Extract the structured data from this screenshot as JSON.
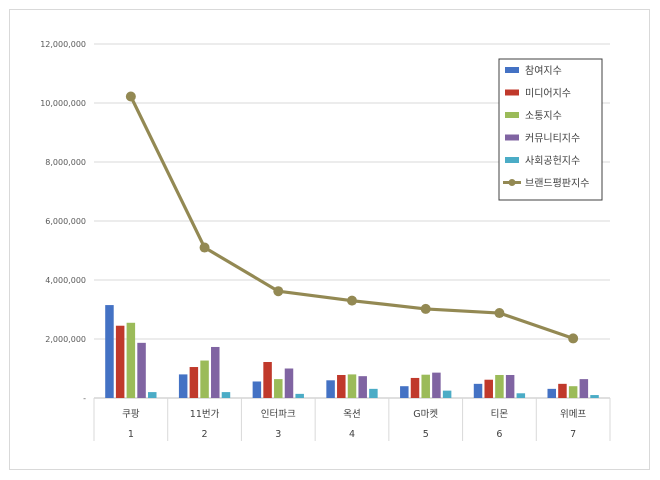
{
  "chart_data": {
    "type": "bar",
    "categories": [
      "쿠팡",
      "11번가",
      "인터파크",
      "옥션",
      "G마켓",
      "티몬",
      "위메프"
    ],
    "ranks": [
      "1",
      "2",
      "3",
      "4",
      "5",
      "6",
      "7"
    ],
    "ylim": [
      0,
      12000000
    ],
    "yticks": [
      0,
      2000000,
      4000000,
      6000000,
      8000000,
      10000000,
      12000000
    ],
    "ytick_labels": [
      "-",
      "2,000,000",
      "4,000,000",
      "6,000,000",
      "8,000,000",
      "10,000,000",
      "12,000,000"
    ],
    "grid": true,
    "legend_position": "top-right",
    "series": [
      {
        "name": "참여지수",
        "type": "bar",
        "color": "#4472c4",
        "values": [
          3150000,
          800000,
          560000,
          600000,
          400000,
          480000,
          310000
        ]
      },
      {
        "name": "미디어지수",
        "type": "bar",
        "color": "#c0392b",
        "values": [
          2450000,
          1050000,
          1220000,
          780000,
          680000,
          620000,
          480000
        ]
      },
      {
        "name": "소통지수",
        "type": "bar",
        "color": "#9bbb59",
        "values": [
          2550000,
          1270000,
          640000,
          800000,
          790000,
          780000,
          400000
        ]
      },
      {
        "name": "커뮤니티지수",
        "type": "bar",
        "color": "#8064a2",
        "values": [
          1870000,
          1730000,
          1000000,
          740000,
          860000,
          780000,
          640000
        ]
      },
      {
        "name": "사회공헌지수",
        "type": "bar",
        "color": "#4bacc6",
        "values": [
          200000,
          200000,
          140000,
          310000,
          250000,
          160000,
          100000
        ]
      },
      {
        "name": "브랜드평판지수",
        "type": "line",
        "color": "#938953",
        "values": [
          10220000,
          5100000,
          3620000,
          3300000,
          3020000,
          2880000,
          2020000
        ]
      }
    ]
  }
}
